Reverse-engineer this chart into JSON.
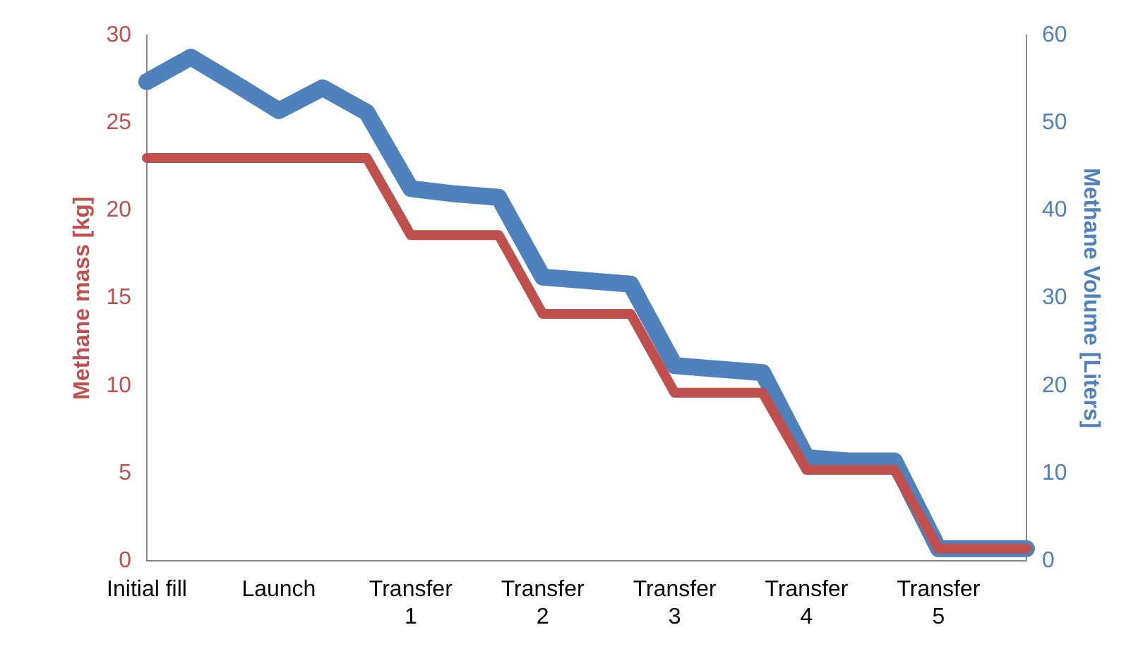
{
  "chart_data": {
    "type": "line",
    "categories": [
      "Initial fill",
      null,
      null,
      "Launch",
      null,
      null,
      "Transfer 1",
      null,
      null,
      "Transfer 2",
      null,
      null,
      "Transfer 3",
      null,
      null,
      "Transfer 4",
      null,
      null,
      "Transfer 5",
      null,
      null
    ],
    "ylabel": "Methane mass [kg]",
    "y2label": "Methane Volume [Liters]",
    "ylim": [
      0,
      30
    ],
    "yticks": [
      0,
      5,
      10,
      15,
      20,
      25,
      30
    ],
    "y2lim": [
      0,
      60
    ],
    "y2ticks": [
      0,
      10,
      20,
      30,
      40,
      50,
      60
    ],
    "grid": false,
    "legend": false,
    "marker": "none",
    "line_style": "solid",
    "series": [
      {
        "color": "#c0504d",
        "values": [
          23,
          23,
          23,
          23,
          23,
          23,
          18.6,
          18.6,
          18.6,
          14.1,
          14.1,
          14.1,
          9.6,
          9.6,
          9.6,
          5.2,
          5.2,
          5.2,
          0.7,
          0.7,
          0.7
        ]
      },
      {
        "color": "#4f81bd",
        "axis": "y2",
        "values": [
          54.7,
          57.5,
          54.5,
          51.4,
          54,
          51.2,
          42.5,
          41.9,
          41.5,
          32.4,
          32,
          31.6,
          22.3,
          21.9,
          21.5,
          11.8,
          11.4,
          11.4,
          1.4,
          1.4,
          1.4
        ]
      }
    ]
  }
}
